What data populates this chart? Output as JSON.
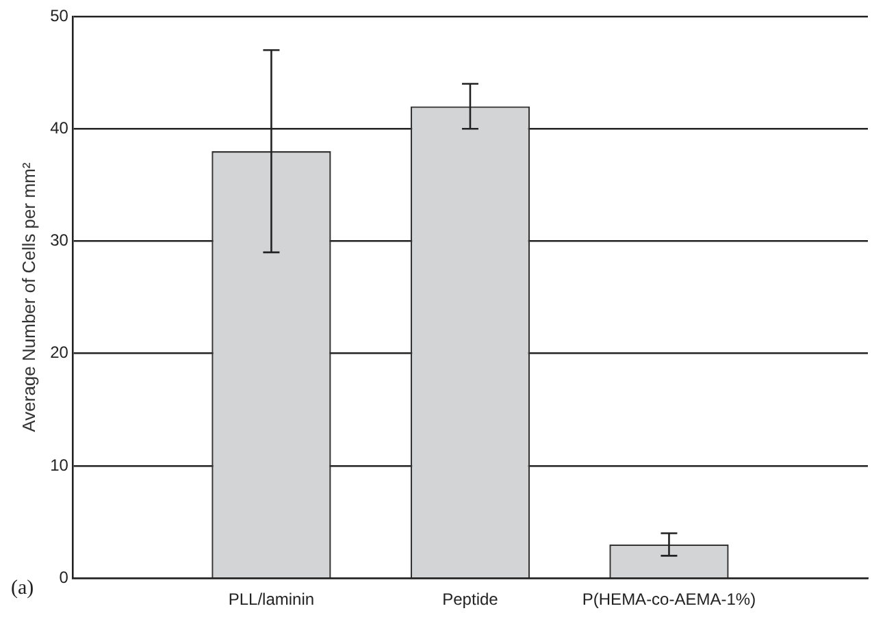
{
  "chart_data": {
    "type": "bar",
    "ylabel": "Average Number of Cells per mm²",
    "categories": [
      null,
      "PLL/laminin",
      "Peptide",
      "P(HEMA-co-AEMA-1%)",
      null
    ],
    "values": [
      null,
      38,
      42,
      3,
      null
    ],
    "errors": [
      null,
      9,
      2,
      1,
      null
    ],
    "color": "#d3d4d6",
    "ylim": [
      0,
      50
    ],
    "yticks": [
      0,
      10,
      20,
      30,
      40,
      50
    ],
    "grid": "y",
    "legend": false,
    "annotations": [
      "(a)"
    ]
  }
}
